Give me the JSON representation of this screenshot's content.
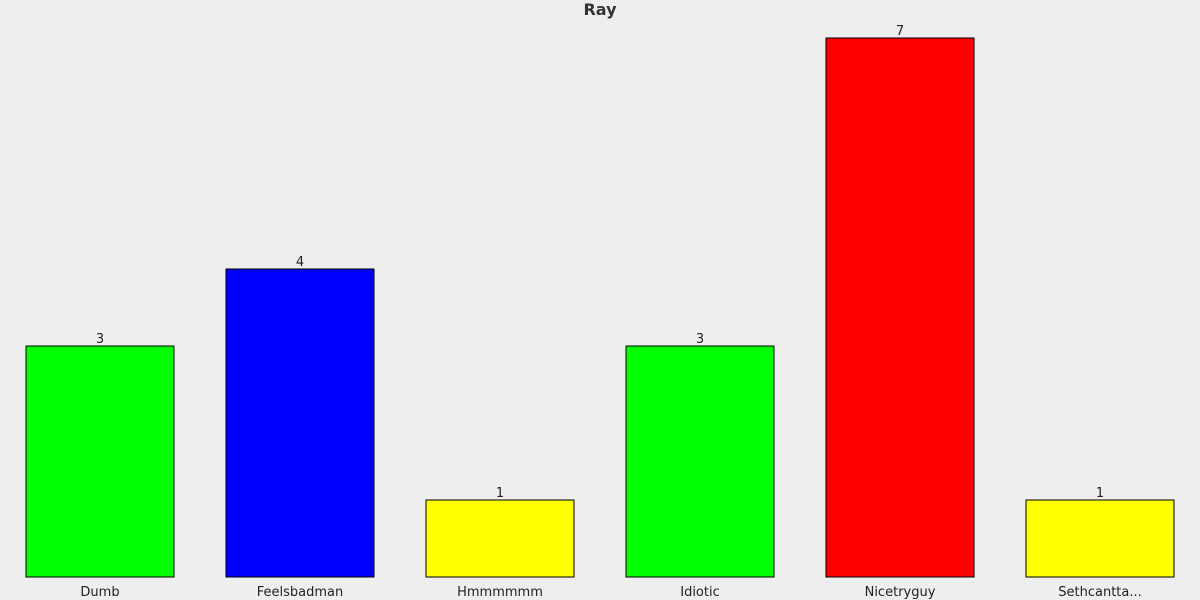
{
  "chart_data": {
    "type": "bar",
    "title": "Ray",
    "categories": [
      "Dumb",
      "Feelsbadman",
      "Hmmmmmm",
      "Idiotic",
      "Nicetryguy",
      "Sethcantta..."
    ],
    "values": [
      3,
      4,
      1,
      3,
      7,
      1
    ],
    "value_labels": [
      "3",
      "4",
      "1",
      "3",
      "7",
      "1"
    ],
    "colors": [
      "#00ff00",
      "#0000ff",
      "#ffff00",
      "#00ff00",
      "#ff0000",
      "#ffff00"
    ],
    "xlabel": "",
    "ylabel": "",
    "ylim": [
      0,
      7
    ],
    "grid": false,
    "legend": "none"
  }
}
